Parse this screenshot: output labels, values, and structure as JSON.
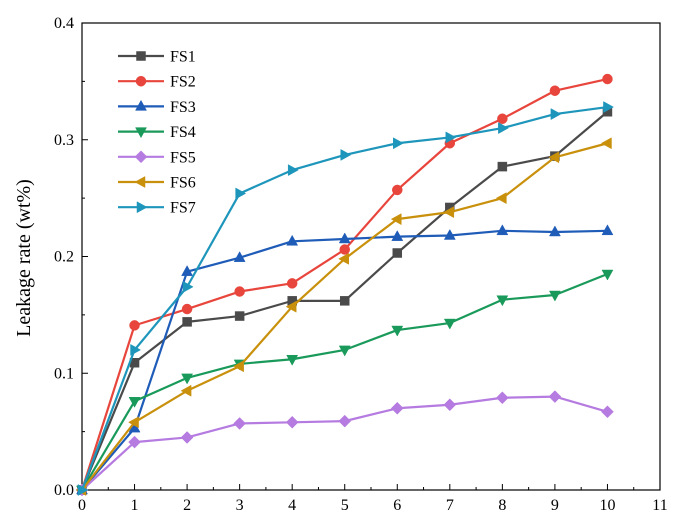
{
  "chart_data": {
    "type": "line",
    "title": "",
    "xlabel": "",
    "ylabel": "Leakage rate (wt%)",
    "xlim": [
      0,
      11
    ],
    "ylim": [
      0,
      0.4
    ],
    "xticks": [
      0,
      1,
      2,
      3,
      4,
      5,
      6,
      7,
      8,
      9,
      10,
      11
    ],
    "yticks": [
      0.0,
      0.1,
      0.2,
      0.3,
      0.4
    ],
    "ytick_labels": [
      "0.0",
      "0.1",
      "0.2",
      "0.3",
      "0.4"
    ],
    "grid": false,
    "legend_position": "top-left",
    "x": [
      0,
      1,
      2,
      3,
      4,
      5,
      6,
      7,
      8,
      9,
      10
    ],
    "series": [
      {
        "name": "FS1",
        "color": "#4a4a4a",
        "marker": "square",
        "values": [
          0,
          0.109,
          0.144,
          0.149,
          0.162,
          0.162,
          0.203,
          0.242,
          0.277,
          0.286,
          0.324
        ]
      },
      {
        "name": "FS2",
        "color": "#e8453c",
        "marker": "circle",
        "values": [
          0,
          0.141,
          0.155,
          0.17,
          0.177,
          0.206,
          0.257,
          0.297,
          0.318,
          0.342,
          0.352
        ]
      },
      {
        "name": "FS3",
        "color": "#1f5cb8",
        "marker": "triangle-up",
        "values": [
          0,
          0.053,
          0.187,
          0.199,
          0.213,
          0.215,
          0.217,
          0.218,
          0.222,
          0.221,
          0.222
        ]
      },
      {
        "name": "FS4",
        "color": "#1a9a5a",
        "marker": "triangle-down",
        "values": [
          0,
          0.076,
          0.096,
          0.108,
          0.112,
          0.12,
          0.137,
          0.143,
          0.163,
          0.167,
          0.185
        ]
      },
      {
        "name": "FS5",
        "color": "#b57be0",
        "marker": "diamond",
        "values": [
          0,
          0.041,
          0.045,
          0.057,
          0.058,
          0.059,
          0.07,
          0.073,
          0.079,
          0.08,
          0.067
        ]
      },
      {
        "name": "FS6",
        "color": "#c9900c",
        "marker": "triangle-left",
        "values": [
          0,
          0.058,
          0.085,
          0.106,
          0.157,
          0.198,
          0.232,
          0.238,
          0.25,
          0.285,
          0.297
        ]
      },
      {
        "name": "FS7",
        "color": "#1e96bb",
        "marker": "triangle-right",
        "values": [
          0,
          0.12,
          0.174,
          0.254,
          0.274,
          0.287,
          0.297,
          0.302,
          0.31,
          0.322,
          0.328
        ]
      }
    ]
  }
}
